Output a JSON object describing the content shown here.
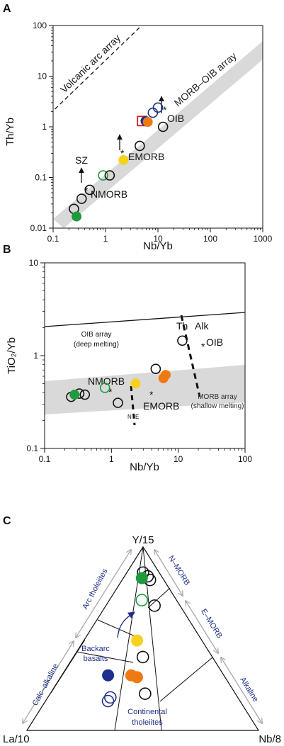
{
  "colors": {
    "green": "#1f9a3d",
    "yellow": "#f5d21e",
    "orange": "#f07a12",
    "navy": "#1f2f8c",
    "red": "#d42020",
    "band": "#d9d9d9",
    "blue_text": "#1e2f86",
    "arrow_grey": "#a8a8a8"
  },
  "chart_data": [
    {
      "id": "A",
      "type": "scatter",
      "panel_label": "A",
      "xlabel": "Nb/Yb",
      "ylabel": "Th/Yb",
      "xscale": "log",
      "yscale": "log",
      "xlim": [
        0.1,
        1000
      ],
      "ylim": [
        0.01,
        100
      ],
      "x_ticks": [
        "0.1",
        "1",
        "10",
        "100",
        "1000"
      ],
      "y_ticks": [
        "0.01",
        "0.1",
        "1",
        "10",
        "100"
      ],
      "annotations": {
        "array": "MORB–OIB array",
        "volcanic_arc": "Volcanic arc array",
        "oib": "OIB",
        "emorb": "EMORB",
        "nmorb": "NMORB",
        "sz": "SZ",
        "asterisk": "*"
      },
      "references": [
        {
          "name": "OIB",
          "x": 17.6,
          "y": 1.6
        },
        {
          "name": "EMORB",
          "x": 2.85,
          "y": 0.2
        },
        {
          "name": "NMORB",
          "x": 0.75,
          "y": 0.019
        }
      ],
      "points": [
        {
          "x": 0.25,
          "y": 0.024,
          "style": "open",
          "color": "#111111"
        },
        {
          "x": 0.35,
          "y": 0.038,
          "style": "open",
          "color": "#111111"
        },
        {
          "x": 0.5,
          "y": 0.057,
          "style": "open",
          "color": "#111111"
        },
        {
          "x": 0.9,
          "y": 0.11,
          "style": "open",
          "color": "#1f9a3d"
        },
        {
          "x": 1.2,
          "y": 0.11,
          "style": "open",
          "color": "#111111"
        },
        {
          "x": 4.5,
          "y": 0.42,
          "style": "open",
          "color": "#111111"
        },
        {
          "x": 5.0,
          "y": 1.3,
          "style": "square",
          "color": "#d42020"
        },
        {
          "x": 8.0,
          "y": 1.9,
          "style": "open",
          "color": "#1f2f8c"
        },
        {
          "x": 10.0,
          "y": 2.4,
          "style": "open",
          "color": "#1f2f8c"
        },
        {
          "x": 12.5,
          "y": 1.0,
          "style": "open",
          "color": "#111111"
        },
        {
          "x": 0.28,
          "y": 0.017,
          "style": "filled",
          "color": "#1f9a3d"
        },
        {
          "x": 2.2,
          "y": 0.22,
          "style": "filled",
          "color": "#f5d21e"
        },
        {
          "x": 5.8,
          "y": 1.3,
          "style": "filled",
          "color": "#1f2f8c"
        },
        {
          "x": 6.4,
          "y": 1.25,
          "style": "filled",
          "color": "#f07a12"
        }
      ]
    },
    {
      "id": "B",
      "type": "scatter",
      "panel_label": "B",
      "xlabel": "Nb/Yb",
      "ylabel": "TiO₂/Yb",
      "xscale": "log",
      "yscale": "log",
      "xlim": [
        0.1,
        100
      ],
      "ylim": [
        0.1,
        10
      ],
      "x_ticks": [
        "0.1",
        "1",
        "10",
        "100"
      ],
      "y_ticks": [
        "0.1",
        "1",
        "10"
      ],
      "annotations": {
        "oib_array_1": "OIB array",
        "oib_array_2": "(deep melting)",
        "morb_array_1": "MORB array",
        "morb_array_2": "(shallow melting)",
        "th": "Th",
        "alk": "Alk",
        "oib": "OIB",
        "nmorb": "NMORB",
        "emorb": "EMORB",
        "n": "N",
        "e": "E",
        "asterisk": "*"
      },
      "points": [
        {
          "x": 0.25,
          "y": 0.36,
          "style": "open",
          "color": "#111111"
        },
        {
          "x": 0.33,
          "y": 0.39,
          "style": "open",
          "color": "#111111"
        },
        {
          "x": 0.4,
          "y": 0.38,
          "style": "open",
          "color": "#111111"
        },
        {
          "x": 0.8,
          "y": 0.45,
          "style": "open",
          "color": "#1f9a3d"
        },
        {
          "x": 1.25,
          "y": 0.31,
          "style": "open",
          "color": "#111111"
        },
        {
          "x": 4.6,
          "y": 0.72,
          "style": "open",
          "color": "#111111"
        },
        {
          "x": 11.5,
          "y": 1.45,
          "style": "open",
          "color": "#111111"
        },
        {
          "x": 0.28,
          "y": 0.38,
          "style": "filled",
          "color": "#1f9a3d"
        },
        {
          "x": 2.3,
          "y": 0.5,
          "style": "filled",
          "color": "#f5d21e"
        },
        {
          "x": 6.0,
          "y": 0.57,
          "style": "filled",
          "color": "#f07a12"
        },
        {
          "x": 6.5,
          "y": 0.62,
          "style": "filled",
          "color": "#f07a12"
        }
      ]
    },
    {
      "id": "C",
      "type": "ternary",
      "panel_label": "C",
      "apex_top": "Y/15",
      "apex_left": "La/10",
      "apex_right": "Nb/8",
      "field_labels": {
        "arc_tholeiites": "Arc tholeiites",
        "calc_alkaline": "Calc–alkaline",
        "n_morb": "N–MORB",
        "e_morb": "E–MORB",
        "alkaline": "Alkaline",
        "backarc_1": "Backarc",
        "backarc_2": "basalts",
        "continental_1": "Continental",
        "continental_2": "tholeiites"
      },
      "points": [
        {
          "y15": 0.86,
          "la10": 0.07,
          "nb8": 0.07,
          "style": "open",
          "color": "#111111"
        },
        {
          "y15": 0.84,
          "la10": 0.06,
          "nb8": 0.1,
          "style": "open",
          "color": "#111111"
        },
        {
          "y15": 0.82,
          "la10": 0.06,
          "nb8": 0.12,
          "style": "open",
          "color": "#111111"
        },
        {
          "y15": 0.68,
          "la10": 0.11,
          "nb8": 0.21,
          "style": "open",
          "color": "#111111"
        },
        {
          "y15": 0.4,
          "la10": 0.3,
          "nb8": 0.3,
          "style": "open",
          "color": "#111111"
        },
        {
          "y15": 0.2,
          "la10": 0.39,
          "nb8": 0.41,
          "style": "open",
          "color": "#111111"
        },
        {
          "y15": 0.71,
          "la10": 0.15,
          "nb8": 0.14,
          "style": "open",
          "color": "#1f9a3d"
        },
        {
          "y15": 0.18,
          "la10": 0.55,
          "nb8": 0.27,
          "style": "open",
          "color": "#1f2f8c"
        },
        {
          "y15": 0.16,
          "la10": 0.57,
          "nb8": 0.27,
          "style": "open",
          "color": "#1f2f8c"
        },
        {
          "y15": 0.83,
          "la10": 0.09,
          "nb8": 0.08,
          "style": "filled",
          "color": "#1f9a3d"
        },
        {
          "y15": 0.49,
          "la10": 0.28,
          "nb8": 0.23,
          "style": "filled",
          "color": "#f5d21e"
        },
        {
          "y15": 0.3,
          "la10": 0.4,
          "nb8": 0.3,
          "style": "filled",
          "color": "#f07a12"
        },
        {
          "y15": 0.29,
          "la10": 0.38,
          "nb8": 0.33,
          "style": "filled",
          "color": "#f07a12"
        },
        {
          "y15": 0.3,
          "la10": 0.5,
          "nb8": 0.2,
          "style": "filled",
          "color": "#1f2f8c"
        }
      ]
    }
  ]
}
